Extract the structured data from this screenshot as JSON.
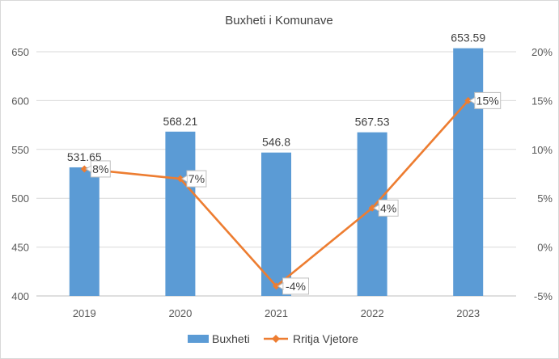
{
  "chart_data": {
    "type": "bar",
    "title": "Buxheti i Komunave",
    "categories": [
      "2019",
      "2020",
      "2021",
      "2022",
      "2023"
    ],
    "series": [
      {
        "name": "Buxheti",
        "type": "bar",
        "axis": "left",
        "values": [
          531.65,
          568.21,
          546.8,
          567.53,
          653.59
        ],
        "labels": [
          "531.65",
          "568.21",
          "546.8",
          "567.53",
          "653.59"
        ],
        "color": "#5B9BD5"
      },
      {
        "name": "Rritja Vjetore",
        "type": "line",
        "axis": "right",
        "values": [
          0.08,
          0.07,
          -0.04,
          0.04,
          0.15
        ],
        "labels": [
          "8%",
          "7%",
          "-4%",
          "4%",
          "15%"
        ],
        "color": "#ED7D31"
      }
    ],
    "y_left": {
      "min": 400,
      "max": 650,
      "ticks": [
        "400",
        "450",
        "500",
        "550",
        "600",
        "650"
      ]
    },
    "y_right": {
      "min": -0.05,
      "max": 0.2,
      "ticks": [
        "-5%",
        "0%",
        "5%",
        "10%",
        "15%",
        "20%"
      ]
    },
    "grid": true,
    "legend": "bottom"
  }
}
